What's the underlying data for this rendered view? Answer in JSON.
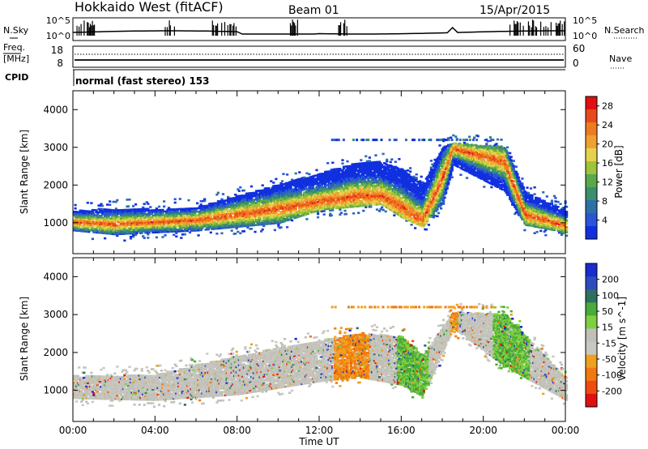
{
  "header": {
    "station": "Hokkaido West (fitACF)",
    "beam": "Beam 01",
    "date": "15/Apr/2015"
  },
  "strip_panels": {
    "nsky_label": "N.Sky",
    "nsky_ticks": [
      "10^5",
      "10^0"
    ],
    "nsky_right_ticks": [
      "10^5",
      "10^0"
    ],
    "nsearch_label": "N.Search",
    "freq_label_line1": "Freq.",
    "freq_label_line2": "[MHz]",
    "freq_ticks": [
      "18",
      "8"
    ],
    "nave_ticks": [
      "60",
      "0"
    ],
    "nave_label": "Nave",
    "cpid_label": "CPID",
    "cpid_text": "normal (fast stereo) 153"
  },
  "colors": {
    "power_scale": [
      "#1030e0",
      "#2a55d8",
      "#2f6fa8",
      "#3a8f6e",
      "#5aa84a",
      "#9ec43a",
      "#e6d24a",
      "#f0a030",
      "#f07a20",
      "#e84a1a",
      "#e01010"
    ],
    "velocity_scale": [
      "#1a2bd0",
      "#2c4cc0",
      "#2f6f62",
      "#4aaa3a",
      "#7fd040",
      "#c0c0b8",
      "#c8c8c0",
      "#f0a020",
      "#f07a10",
      "#f04a10",
      "#e01010"
    ]
  },
  "chart_data": [
    {
      "type": "heatmap",
      "title": "",
      "xlabel": "Time UT",
      "ylabel": "Slant Range [km]",
      "x_ticks": [
        "00:00",
        "04:00",
        "08:00",
        "12:00",
        "16:00",
        "20:00",
        "00:00"
      ],
      "y_ticks": [
        1000,
        2000,
        3000,
        4000
      ],
      "xlim_hours": [
        0,
        24
      ],
      "ylim_km": [
        180,
        4500
      ],
      "colorbar": {
        "label": "Power [dB]",
        "ticks": [
          4,
          8,
          12,
          16,
          20,
          24,
          28
        ],
        "range": [
          0,
          30
        ]
      },
      "scatter_bands_km": [
        {
          "t": 0,
          "lo": 750,
          "hi": 1300,
          "core": 1000
        },
        {
          "t": 2,
          "lo": 650,
          "hi": 1350,
          "core": 950
        },
        {
          "t": 4,
          "lo": 700,
          "hi": 1350,
          "core": 1000
        },
        {
          "t": 6,
          "lo": 750,
          "hi": 1400,
          "core": 1050
        },
        {
          "t": 8,
          "lo": 850,
          "hi": 1700,
          "core": 1200
        },
        {
          "t": 10,
          "lo": 950,
          "hi": 2000,
          "core": 1350
        },
        {
          "t": 12,
          "lo": 1300,
          "hi": 2300,
          "core": 1550
        },
        {
          "t": 14,
          "lo": 1400,
          "hi": 2600,
          "core": 1700
        },
        {
          "t": 15,
          "lo": 1450,
          "hi": 2600,
          "core": 1700
        },
        {
          "t": 16,
          "lo": 1100,
          "hi": 2400,
          "core": 1400
        },
        {
          "t": 17,
          "lo": 850,
          "hi": 2000,
          "core": 1050
        },
        {
          "t": 18,
          "lo": 1500,
          "hi": 3000,
          "core": 2200
        },
        {
          "t": 18.5,
          "lo": 2500,
          "hi": 3100,
          "core": 2950
        },
        {
          "t": 21,
          "lo": 1800,
          "hi": 3000,
          "core": 2600
        },
        {
          "t": 22,
          "lo": 900,
          "hi": 1800,
          "core": 1200
        },
        {
          "t": 24,
          "lo": 700,
          "hi": 1300,
          "core": 900
        }
      ]
    },
    {
      "type": "heatmap",
      "title": "",
      "xlabel": "Time UT",
      "ylabel": "Slant Range [km]",
      "x_ticks": [
        "00:00",
        "04:00",
        "08:00",
        "12:00",
        "16:00",
        "20:00",
        "00:00"
      ],
      "y_ticks": [
        1000,
        2000,
        3000,
        4000
      ],
      "xlim_hours": [
        0,
        24
      ],
      "ylim_km": [
        180,
        4500
      ],
      "colorbar": {
        "label": "Velocity [m s^-1]",
        "ticks": [
          "200",
          "100",
          "50",
          "15",
          "-15",
          "-50",
          "-100",
          "-200"
        ],
        "range": [
          -250,
          250
        ]
      },
      "scatter_bands_km": [
        {
          "t": 0,
          "lo": 750,
          "hi": 1350,
          "dominant_velocity": 0
        },
        {
          "t": 4,
          "lo": 700,
          "hi": 1400,
          "dominant_velocity": 0
        },
        {
          "t": 8,
          "lo": 850,
          "hi": 1900,
          "dominant_velocity": 0
        },
        {
          "t": 12,
          "lo": 1200,
          "hi": 2300,
          "dominant_velocity": -20
        },
        {
          "t": 14,
          "lo": 1300,
          "hi": 2500,
          "dominant_velocity": -50
        },
        {
          "t": 16,
          "lo": 1100,
          "hi": 2400,
          "dominant_velocity": 40
        },
        {
          "t": 17,
          "lo": 800,
          "hi": 1900,
          "dominant_velocity": 50
        },
        {
          "t": 18.5,
          "lo": 2600,
          "hi": 3050,
          "dominant_velocity": -40
        },
        {
          "t": 21,
          "lo": 1600,
          "hi": 3000,
          "dominant_velocity": 50
        },
        {
          "t": 24,
          "lo": 700,
          "hi": 1300,
          "dominant_velocity": 0
        }
      ]
    }
  ]
}
